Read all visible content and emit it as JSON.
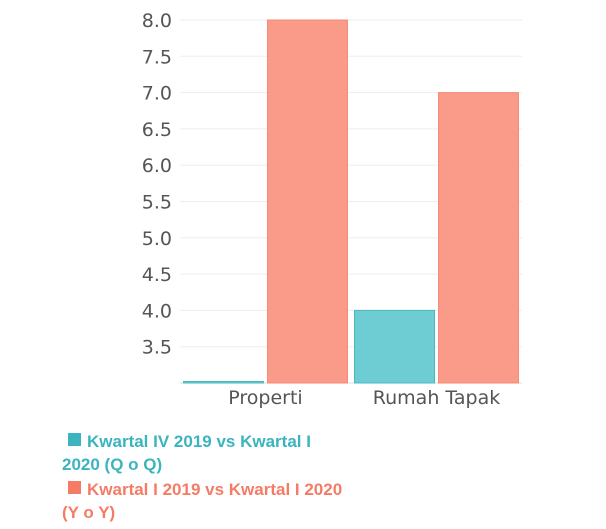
{
  "chart_data": {
    "type": "bar",
    "categories": [
      "Properti",
      "Rumah Tapak"
    ],
    "series": [
      {
        "name": "Kwartal IV 2019 vs Kwartal I 2020 (Q o Q)",
        "values": [
          3.0,
          4.0
        ],
        "color": "#6ecdd3"
      },
      {
        "name": "Kwartal I 2019 vs Kwartal I 2020 (Y o Y)",
        "values": [
          8.0,
          7.0
        ],
        "color": "#fa9a88"
      }
    ],
    "yticks": [
      "3.5",
      "4.0",
      "4.5",
      "5.0",
      "5.5",
      "6.0",
      "6.5",
      "7.0",
      "7.5",
      "8.0"
    ],
    "ylim": [
      3.0,
      8.0
    ],
    "grid": true,
    "legend_position": "bottom-left"
  },
  "legend": [
    {
      "line1": "Kwartal IV 2019 vs Kwartal I",
      "line2": "2020 (Q o Q)",
      "color": "#3bb4bf"
    },
    {
      "line1": "Kwartal I 2019 vs Kwartal I 2020",
      "line2": "(Y o Y)",
      "color": "#f47c67"
    }
  ]
}
